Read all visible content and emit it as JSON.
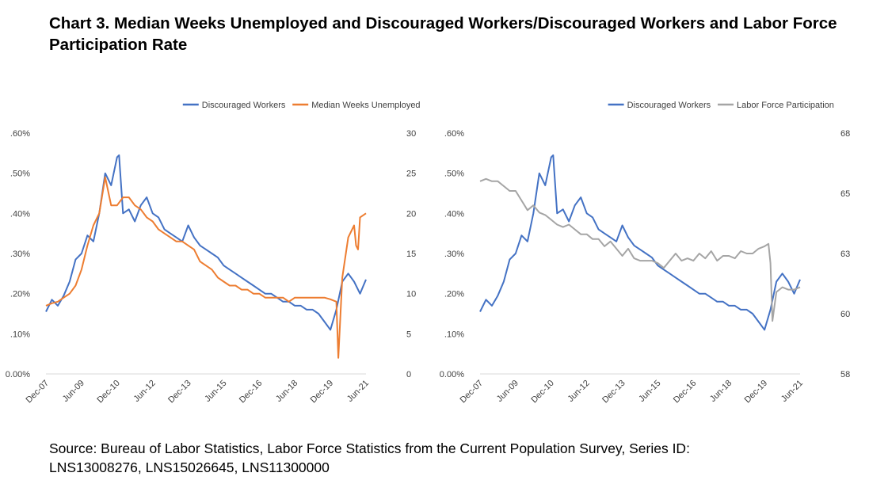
{
  "title": "Chart 3. Median Weeks Unemployed and Discouraged Workers/Discouraged Workers and Labor Force Participation Rate",
  "source_line1": "Source: Bureau of Labor Statistics, Labor Force Statistics from the Current Population Survey, Series ID:",
  "source_line2": "LNS13008276, LNS15026645, LNS11300000",
  "chart_data": [
    {
      "type": "line",
      "x_tick_labels": [
        "Dec-07",
        "Jun-09",
        "Dec-10",
        "Jun-12",
        "Dec-13",
        "Jun-15",
        "Dec-16",
        "Jun-18",
        "Dec-19",
        "Jun-21"
      ],
      "x_range": [
        "2007-12",
        "2021-06"
      ],
      "y_left": {
        "ticks": [
          "0.00%",
          ".10%",
          ".20%",
          ".30%",
          ".40%",
          ".50%",
          ".60%"
        ],
        "range": [
          0.0,
          0.6
        ]
      },
      "y_right": {
        "ticks": [
          "0",
          "5",
          "10",
          "15",
          "20",
          "25",
          "30"
        ],
        "range": [
          0,
          30
        ]
      },
      "grid": false,
      "legend_position": "top-right",
      "series": [
        {
          "name": "Discouraged Workers",
          "axis": "left",
          "color": "#4472C4",
          "points": [
            [
              "2007-12",
              0.155
            ],
            [
              "2008-03",
              0.185
            ],
            [
              "2008-06",
              0.17
            ],
            [
              "2008-09",
              0.195
            ],
            [
              "2008-12",
              0.23
            ],
            [
              "2009-03",
              0.285
            ],
            [
              "2009-06",
              0.3
            ],
            [
              "2009-09",
              0.345
            ],
            [
              "2009-12",
              0.33
            ],
            [
              "2010-03",
              0.4
            ],
            [
              "2010-06",
              0.5
            ],
            [
              "2010-09",
              0.47
            ],
            [
              "2010-12",
              0.54
            ],
            [
              "2011-01",
              0.545
            ],
            [
              "2011-03",
              0.4
            ],
            [
              "2011-06",
              0.41
            ],
            [
              "2011-09",
              0.38
            ],
            [
              "2011-12",
              0.42
            ],
            [
              "2012-03",
              0.44
            ],
            [
              "2012-06",
              0.4
            ],
            [
              "2012-09",
              0.39
            ],
            [
              "2012-12",
              0.36
            ],
            [
              "2013-03",
              0.35
            ],
            [
              "2013-06",
              0.34
            ],
            [
              "2013-09",
              0.33
            ],
            [
              "2013-12",
              0.37
            ],
            [
              "2014-03",
              0.34
            ],
            [
              "2014-06",
              0.32
            ],
            [
              "2014-09",
              0.31
            ],
            [
              "2014-12",
              0.3
            ],
            [
              "2015-03",
              0.29
            ],
            [
              "2015-06",
              0.27
            ],
            [
              "2015-09",
              0.26
            ],
            [
              "2015-12",
              0.25
            ],
            [
              "2016-03",
              0.24
            ],
            [
              "2016-06",
              0.23
            ],
            [
              "2016-09",
              0.22
            ],
            [
              "2016-12",
              0.21
            ],
            [
              "2017-03",
              0.2
            ],
            [
              "2017-06",
              0.2
            ],
            [
              "2017-09",
              0.19
            ],
            [
              "2017-12",
              0.18
            ],
            [
              "2018-03",
              0.18
            ],
            [
              "2018-06",
              0.17
            ],
            [
              "2018-09",
              0.17
            ],
            [
              "2018-12",
              0.16
            ],
            [
              "2019-03",
              0.16
            ],
            [
              "2019-06",
              0.15
            ],
            [
              "2019-09",
              0.13
            ],
            [
              "2019-12",
              0.11
            ],
            [
              "2020-03",
              0.16
            ],
            [
              "2020-06",
              0.23
            ],
            [
              "2020-09",
              0.25
            ],
            [
              "2020-12",
              0.23
            ],
            [
              "2021-03",
              0.2
            ],
            [
              "2021-06",
              0.235
            ]
          ]
        },
        {
          "name": "Median Weeks Unemployed",
          "axis": "right",
          "color": "#ED7D31",
          "points": [
            [
              "2007-12",
              8.5
            ],
            [
              "2008-03",
              8.8
            ],
            [
              "2008-06",
              9.0
            ],
            [
              "2008-09",
              9.5
            ],
            [
              "2008-12",
              10.0
            ],
            [
              "2009-03",
              11.0
            ],
            [
              "2009-06",
              13.0
            ],
            [
              "2009-09",
              16.0
            ],
            [
              "2009-12",
              18.5
            ],
            [
              "2010-03",
              20.0
            ],
            [
              "2010-06",
              24.5
            ],
            [
              "2010-09",
              21.0
            ],
            [
              "2010-12",
              21.0
            ],
            [
              "2011-03",
              22.0
            ],
            [
              "2011-06",
              22.0
            ],
            [
              "2011-09",
              21.0
            ],
            [
              "2011-12",
              20.5
            ],
            [
              "2012-03",
              19.5
            ],
            [
              "2012-06",
              19.0
            ],
            [
              "2012-09",
              18.0
            ],
            [
              "2012-12",
              17.5
            ],
            [
              "2013-03",
              17.0
            ],
            [
              "2013-06",
              16.5
            ],
            [
              "2013-09",
              16.5
            ],
            [
              "2013-12",
              16.0
            ],
            [
              "2014-03",
              15.5
            ],
            [
              "2014-06",
              14.0
            ],
            [
              "2014-09",
              13.5
            ],
            [
              "2014-12",
              13.0
            ],
            [
              "2015-03",
              12.0
            ],
            [
              "2015-06",
              11.5
            ],
            [
              "2015-09",
              11.0
            ],
            [
              "2015-12",
              11.0
            ],
            [
              "2016-03",
              10.5
            ],
            [
              "2016-06",
              10.5
            ],
            [
              "2016-09",
              10.0
            ],
            [
              "2016-12",
              10.0
            ],
            [
              "2017-03",
              9.5
            ],
            [
              "2017-06",
              9.5
            ],
            [
              "2017-09",
              9.5
            ],
            [
              "2017-12",
              9.5
            ],
            [
              "2018-03",
              9.0
            ],
            [
              "2018-06",
              9.5
            ],
            [
              "2018-09",
              9.5
            ],
            [
              "2018-12",
              9.5
            ],
            [
              "2019-03",
              9.5
            ],
            [
              "2019-06",
              9.5
            ],
            [
              "2019-09",
              9.5
            ],
            [
              "2019-12",
              9.3
            ],
            [
              "2020-03",
              9.0
            ],
            [
              "2020-04",
              2.0
            ],
            [
              "2020-06",
              12.0
            ],
            [
              "2020-09",
              17.0
            ],
            [
              "2020-12",
              18.5
            ],
            [
              "2021-01",
              16.0
            ],
            [
              "2021-02",
              15.5
            ],
            [
              "2021-03",
              19.5
            ],
            [
              "2021-06",
              20.0
            ]
          ]
        }
      ]
    },
    {
      "type": "line",
      "x_tick_labels": [
        "Dec-07",
        "Jun-09",
        "Dec-10",
        "Jun-12",
        "Dec-13",
        "Jun-15",
        "Dec-16",
        "Jun-18",
        "Dec-19",
        "Jun-21"
      ],
      "x_range": [
        "2007-12",
        "2021-06"
      ],
      "y_left": {
        "ticks": [
          "0.00%",
          ".10%",
          ".20%",
          ".30%",
          ".40%",
          ".50%",
          ".60%"
        ],
        "range": [
          0.0,
          0.6
        ]
      },
      "y_right": {
        "ticks": [
          "58",
          "60",
          "63",
          "65",
          "68"
        ],
        "range": [
          58,
          68
        ]
      },
      "grid": false,
      "legend_position": "top-right",
      "series": [
        {
          "name": "Discouraged Workers",
          "axis": "left",
          "color": "#4472C4",
          "points": [
            [
              "2007-12",
              0.155
            ],
            [
              "2008-03",
              0.185
            ],
            [
              "2008-06",
              0.17
            ],
            [
              "2008-09",
              0.195
            ],
            [
              "2008-12",
              0.23
            ],
            [
              "2009-03",
              0.285
            ],
            [
              "2009-06",
              0.3
            ],
            [
              "2009-09",
              0.345
            ],
            [
              "2009-12",
              0.33
            ],
            [
              "2010-03",
              0.4
            ],
            [
              "2010-06",
              0.5
            ],
            [
              "2010-09",
              0.47
            ],
            [
              "2010-12",
              0.54
            ],
            [
              "2011-01",
              0.545
            ],
            [
              "2011-03",
              0.4
            ],
            [
              "2011-06",
              0.41
            ],
            [
              "2011-09",
              0.38
            ],
            [
              "2011-12",
              0.42
            ],
            [
              "2012-03",
              0.44
            ],
            [
              "2012-06",
              0.4
            ],
            [
              "2012-09",
              0.39
            ],
            [
              "2012-12",
              0.36
            ],
            [
              "2013-03",
              0.35
            ],
            [
              "2013-06",
              0.34
            ],
            [
              "2013-09",
              0.33
            ],
            [
              "2013-12",
              0.37
            ],
            [
              "2014-03",
              0.34
            ],
            [
              "2014-06",
              0.32
            ],
            [
              "2014-09",
              0.31
            ],
            [
              "2014-12",
              0.3
            ],
            [
              "2015-03",
              0.29
            ],
            [
              "2015-06",
              0.27
            ],
            [
              "2015-09",
              0.26
            ],
            [
              "2015-12",
              0.25
            ],
            [
              "2016-03",
              0.24
            ],
            [
              "2016-06",
              0.23
            ],
            [
              "2016-09",
              0.22
            ],
            [
              "2016-12",
              0.21
            ],
            [
              "2017-03",
              0.2
            ],
            [
              "2017-06",
              0.2
            ],
            [
              "2017-09",
              0.19
            ],
            [
              "2017-12",
              0.18
            ],
            [
              "2018-03",
              0.18
            ],
            [
              "2018-06",
              0.17
            ],
            [
              "2018-09",
              0.17
            ],
            [
              "2018-12",
              0.16
            ],
            [
              "2019-03",
              0.16
            ],
            [
              "2019-06",
              0.15
            ],
            [
              "2019-09",
              0.13
            ],
            [
              "2019-12",
              0.11
            ],
            [
              "2020-03",
              0.16
            ],
            [
              "2020-06",
              0.23
            ],
            [
              "2020-09",
              0.25
            ],
            [
              "2020-12",
              0.23
            ],
            [
              "2021-03",
              0.2
            ],
            [
              "2021-06",
              0.235
            ]
          ]
        },
        {
          "name": "Labor Force Participation",
          "axis": "right",
          "color": "#A5A5A5",
          "points": [
            [
              "2007-12",
              66.0
            ],
            [
              "2008-03",
              66.1
            ],
            [
              "2008-06",
              66.0
            ],
            [
              "2008-09",
              66.0
            ],
            [
              "2008-12",
              65.8
            ],
            [
              "2009-03",
              65.6
            ],
            [
              "2009-06",
              65.6
            ],
            [
              "2009-09",
              65.2
            ],
            [
              "2009-12",
              64.8
            ],
            [
              "2010-03",
              65.0
            ],
            [
              "2010-06",
              64.7
            ],
            [
              "2010-09",
              64.6
            ],
            [
              "2010-12",
              64.4
            ],
            [
              "2011-03",
              64.2
            ],
            [
              "2011-06",
              64.1
            ],
            [
              "2011-09",
              64.2
            ],
            [
              "2011-12",
              64.0
            ],
            [
              "2012-03",
              63.8
            ],
            [
              "2012-06",
              63.8
            ],
            [
              "2012-09",
              63.6
            ],
            [
              "2012-12",
              63.6
            ],
            [
              "2013-03",
              63.3
            ],
            [
              "2013-06",
              63.5
            ],
            [
              "2013-09",
              63.2
            ],
            [
              "2013-12",
              62.9
            ],
            [
              "2014-03",
              63.2
            ],
            [
              "2014-06",
              62.8
            ],
            [
              "2014-09",
              62.7
            ],
            [
              "2014-12",
              62.7
            ],
            [
              "2015-03",
              62.7
            ],
            [
              "2015-06",
              62.6
            ],
            [
              "2015-09",
              62.4
            ],
            [
              "2015-12",
              62.7
            ],
            [
              "2016-03",
              63.0
            ],
            [
              "2016-06",
              62.7
            ],
            [
              "2016-09",
              62.8
            ],
            [
              "2016-12",
              62.7
            ],
            [
              "2017-03",
              63.0
            ],
            [
              "2017-06",
              62.8
            ],
            [
              "2017-09",
              63.1
            ],
            [
              "2017-12",
              62.7
            ],
            [
              "2018-03",
              62.9
            ],
            [
              "2018-06",
              62.9
            ],
            [
              "2018-09",
              62.8
            ],
            [
              "2018-12",
              63.1
            ],
            [
              "2019-03",
              63.0
            ],
            [
              "2019-06",
              63.0
            ],
            [
              "2019-09",
              63.2
            ],
            [
              "2019-12",
              63.3
            ],
            [
              "2020-02",
              63.4
            ],
            [
              "2020-03",
              62.6
            ],
            [
              "2020-04",
              60.2
            ],
            [
              "2020-06",
              61.4
            ],
            [
              "2020-09",
              61.6
            ],
            [
              "2020-12",
              61.5
            ],
            [
              "2021-03",
              61.5
            ],
            [
              "2021-06",
              61.6
            ]
          ]
        }
      ]
    }
  ]
}
